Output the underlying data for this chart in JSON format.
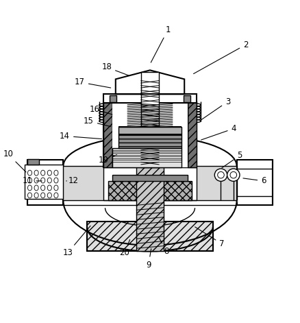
{
  "bg_color": "#ffffff",
  "line_color": "#000000",
  "figsize": [
    4.38,
    4.71
  ],
  "dpi": 100,
  "labels_data": {
    "1": [
      0.56,
      0.94,
      0.5,
      0.825
    ],
    "2": [
      0.82,
      0.89,
      0.64,
      0.79
    ],
    "3": [
      0.76,
      0.7,
      0.665,
      0.635
    ],
    "4": [
      0.78,
      0.61,
      0.665,
      0.57
    ],
    "5": [
      0.8,
      0.52,
      0.735,
      0.475
    ],
    "6": [
      0.88,
      0.435,
      0.805,
      0.445
    ],
    "7": [
      0.74,
      0.225,
      0.645,
      0.285
    ],
    "8": [
      0.555,
      0.2,
      0.525,
      0.255
    ],
    "9": [
      0.495,
      0.155,
      0.505,
      0.215
    ],
    "10": [
      0.025,
      0.525,
      0.09,
      0.46
    ],
    "11": [
      0.09,
      0.435,
      0.145,
      0.435
    ],
    "12": [
      0.245,
      0.435,
      0.22,
      0.435
    ],
    "13": [
      0.225,
      0.195,
      0.305,
      0.29
    ],
    "14": [
      0.215,
      0.585,
      0.345,
      0.575
    ],
    "15": [
      0.295,
      0.635,
      0.375,
      0.615
    ],
    "16": [
      0.315,
      0.675,
      0.38,
      0.655
    ],
    "17": [
      0.265,
      0.765,
      0.375,
      0.745
    ],
    "18": [
      0.355,
      0.815,
      0.435,
      0.785
    ],
    "19": [
      0.345,
      0.505,
      0.395,
      0.525
    ],
    "20": [
      0.415,
      0.195,
      0.435,
      0.245
    ]
  }
}
